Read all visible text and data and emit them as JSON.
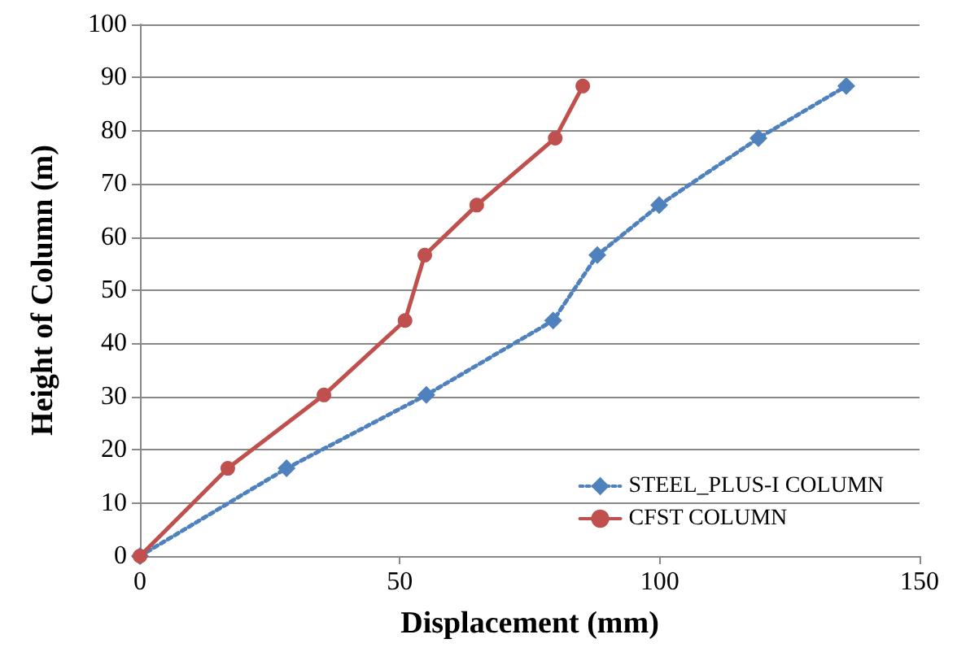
{
  "chart_data": {
    "type": "line",
    "xlabel": "Displacement (mm)",
    "ylabel": "Height of Column (m)",
    "xlim": [
      0,
      150
    ],
    "xticks": [
      0,
      50,
      100,
      150
    ],
    "ylim": [
      0,
      100
    ],
    "yticks": [
      0,
      10,
      20,
      30,
      40,
      50,
      60,
      70,
      80,
      90,
      100
    ],
    "grid": "y",
    "legend": "bottom right",
    "series": [
      {
        "name": "STEEL_PLUS-I COLUMN",
        "color": "#4f81bd",
        "marker": "diamond",
        "line_style": "dotted",
        "x": [
          0,
          28.2,
          55.1,
          79.5,
          88,
          99.9,
          119,
          135.9
        ],
        "values": [
          0,
          16.5,
          30.3,
          44.3,
          56.6,
          66,
          78.6,
          88.4
        ]
      },
      {
        "name": "CFST COLUMN",
        "color": "#c0504d",
        "marker": "circle",
        "line_style": "solid",
        "x": [
          0,
          16.9,
          35.4,
          51,
          54.8,
          64.8,
          79.9,
          85.2
        ],
        "values": [
          0,
          16.5,
          30.3,
          44.3,
          56.6,
          66,
          78.6,
          88.4
        ]
      }
    ]
  }
}
